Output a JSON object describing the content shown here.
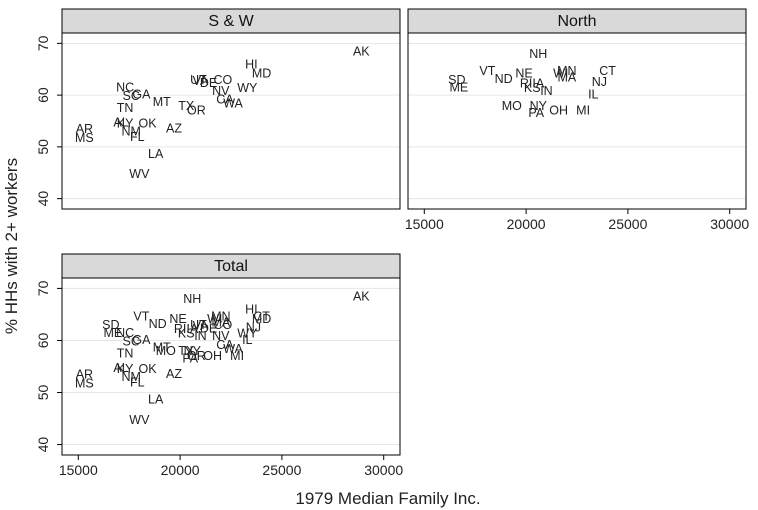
{
  "chart_data": {
    "type": "scatter",
    "xlabel": "1979 Median Family Inc.",
    "ylabel": "% HHs with 2+ workers",
    "xlim": [
      14200,
      30800
    ],
    "ylim": [
      38,
      72
    ],
    "xticks": [
      15000,
      20000,
      25000,
      30000
    ],
    "yticks": [
      40,
      50,
      60,
      70
    ],
    "panels": [
      {
        "title": "S & W",
        "points": [
          {
            "label": "AK",
            "x": 28900,
            "y": 68.3
          },
          {
            "label": "HI",
            "x": 23500,
            "y": 65.8
          },
          {
            "label": "MD",
            "x": 24000,
            "y": 64.0
          },
          {
            "label": "WY",
            "x": 23300,
            "y": 61.2
          },
          {
            "label": "UT",
            "x": 20900,
            "y": 62.8
          },
          {
            "label": "CO",
            "x": 22100,
            "y": 62.8
          },
          {
            "label": "VA",
            "x": 21000,
            "y": 62.6
          },
          {
            "label": "DE",
            "x": 21400,
            "y": 62.2
          },
          {
            "label": "NV",
            "x": 22000,
            "y": 60.7
          },
          {
            "label": "CA",
            "x": 22200,
            "y": 59.0
          },
          {
            "label": "WA",
            "x": 22600,
            "y": 58.2
          },
          {
            "label": "TX",
            "x": 20300,
            "y": 57.8
          },
          {
            "label": "OR",
            "x": 20800,
            "y": 56.9
          },
          {
            "label": "NC",
            "x": 17300,
            "y": 61.3
          },
          {
            "label": "SC",
            "x": 17600,
            "y": 59.7
          },
          {
            "label": "GA",
            "x": 18100,
            "y": 60.0
          },
          {
            "label": "MT",
            "x": 19100,
            "y": 58.5
          },
          {
            "label": "TN",
            "x": 17300,
            "y": 57.4
          },
          {
            "label": "KY",
            "x": 17300,
            "y": 54.4
          },
          {
            "label": "OK",
            "x": 18400,
            "y": 54.4
          },
          {
            "label": "AZ",
            "x": 19700,
            "y": 53.4
          },
          {
            "label": "AR",
            "x": 15300,
            "y": 53.3
          },
          {
            "label": "MS",
            "x": 15300,
            "y": 51.6
          },
          {
            "label": "NM",
            "x": 17600,
            "y": 52.8
          },
          {
            "label": "AL",
            "x": 17100,
            "y": 54.6
          },
          {
            "label": "FL",
            "x": 17900,
            "y": 51.8
          },
          {
            "label": "LA",
            "x": 18800,
            "y": 48.5
          },
          {
            "label": "WV",
            "x": 18000,
            "y": 44.6
          }
        ]
      },
      {
        "title": "North",
        "points": [
          {
            "label": "NH",
            "x": 20600,
            "y": 67.8
          },
          {
            "label": "VT",
            "x": 18100,
            "y": 64.5
          },
          {
            "label": "CT",
            "x": 24000,
            "y": 64.5
          },
          {
            "label": "MN",
            "x": 22000,
            "y": 64.5
          },
          {
            "label": "WI",
            "x": 21700,
            "y": 64.0
          },
          {
            "label": "NE",
            "x": 19900,
            "y": 64.0
          },
          {
            "label": "MA",
            "x": 22000,
            "y": 63.3
          },
          {
            "label": "NJ",
            "x": 23600,
            "y": 62.4
          },
          {
            "label": "ND",
            "x": 18900,
            "y": 63.0
          },
          {
            "label": "SD",
            "x": 16600,
            "y": 62.8
          },
          {
            "label": "ME",
            "x": 16700,
            "y": 61.3
          },
          {
            "label": "RI",
            "x": 20000,
            "y": 62.1
          },
          {
            "label": "IA",
            "x": 20600,
            "y": 62.1
          },
          {
            "label": "KS",
            "x": 20300,
            "y": 61.2
          },
          {
            "label": "IN",
            "x": 21000,
            "y": 60.7
          },
          {
            "label": "IL",
            "x": 23300,
            "y": 60.0
          },
          {
            "label": "MO",
            "x": 19300,
            "y": 57.8
          },
          {
            "label": "NY",
            "x": 20600,
            "y": 57.8
          },
          {
            "label": "PA",
            "x": 20500,
            "y": 56.4
          },
          {
            "label": "OH",
            "x": 21600,
            "y": 56.9
          },
          {
            "label": "MI",
            "x": 22800,
            "y": 56.9
          }
        ]
      },
      {
        "title": "Total",
        "points": [
          {
            "label": "AK",
            "x": 28900,
            "y": 68.3
          },
          {
            "label": "NH",
            "x": 20600,
            "y": 67.8
          },
          {
            "label": "HI",
            "x": 23500,
            "y": 65.8
          },
          {
            "label": "CT",
            "x": 24000,
            "y": 64.5
          },
          {
            "label": "MD",
            "x": 24000,
            "y": 64.0
          },
          {
            "label": "VT",
            "x": 18100,
            "y": 64.5
          },
          {
            "label": "MN",
            "x": 22000,
            "y": 64.5
          },
          {
            "label": "WI",
            "x": 21700,
            "y": 64.0
          },
          {
            "label": "NE",
            "x": 19900,
            "y": 64.0
          },
          {
            "label": "MA",
            "x": 22000,
            "y": 63.3
          },
          {
            "label": "UT",
            "x": 20900,
            "y": 62.8
          },
          {
            "label": "CO",
            "x": 22100,
            "y": 62.8
          },
          {
            "label": "VA",
            "x": 21000,
            "y": 62.6
          },
          {
            "label": "DE",
            "x": 21400,
            "y": 62.2
          },
          {
            "label": "NJ",
            "x": 23600,
            "y": 62.4
          },
          {
            "label": "ND",
            "x": 18900,
            "y": 63.0
          },
          {
            "label": "SD",
            "x": 16600,
            "y": 62.8
          },
          {
            "label": "ME",
            "x": 16700,
            "y": 61.3
          },
          {
            "label": "RI",
            "x": 20000,
            "y": 62.1
          },
          {
            "label": "IA",
            "x": 20600,
            "y": 62.1
          },
          {
            "label": "KS",
            "x": 20300,
            "y": 61.2
          },
          {
            "label": "IN",
            "x": 21000,
            "y": 60.7
          },
          {
            "label": "NV",
            "x": 22000,
            "y": 60.7
          },
          {
            "label": "WY",
            "x": 23300,
            "y": 61.2
          },
          {
            "label": "IL",
            "x": 23300,
            "y": 60.0
          },
          {
            "label": "NC",
            "x": 17300,
            "y": 61.3
          },
          {
            "label": "SC",
            "x": 17600,
            "y": 59.7
          },
          {
            "label": "GA",
            "x": 18100,
            "y": 60.0
          },
          {
            "label": "MT",
            "x": 19100,
            "y": 58.5
          },
          {
            "label": "MO",
            "x": 19300,
            "y": 57.8
          },
          {
            "label": "NY",
            "x": 20600,
            "y": 57.8
          },
          {
            "label": "CA",
            "x": 22200,
            "y": 59.0
          },
          {
            "label": "WA",
            "x": 22600,
            "y": 58.2
          },
          {
            "label": "TX",
            "x": 20300,
            "y": 57.8
          },
          {
            "label": "OR",
            "x": 20800,
            "y": 56.9
          },
          {
            "label": "PA",
            "x": 20500,
            "y": 56.4
          },
          {
            "label": "OH",
            "x": 21600,
            "y": 56.9
          },
          {
            "label": "MI",
            "x": 22800,
            "y": 56.9
          },
          {
            "label": "TN",
            "x": 17300,
            "y": 57.4
          },
          {
            "label": "KY",
            "x": 17300,
            "y": 54.4
          },
          {
            "label": "OK",
            "x": 18400,
            "y": 54.4
          },
          {
            "label": "AL",
            "x": 17100,
            "y": 54.6
          },
          {
            "label": "AZ",
            "x": 19700,
            "y": 53.4
          },
          {
            "label": "AR",
            "x": 15300,
            "y": 53.3
          },
          {
            "label": "MS",
            "x": 15300,
            "y": 51.6
          },
          {
            "label": "NM",
            "x": 17600,
            "y": 52.8
          },
          {
            "label": "FL",
            "x": 17900,
            "y": 51.8
          },
          {
            "label": "LA",
            "x": 18800,
            "y": 48.5
          },
          {
            "label": "WV",
            "x": 18000,
            "y": 44.6
          }
        ]
      }
    ]
  },
  "colors": {
    "strip_bg": "#d9d9d9",
    "frame": "#000000",
    "grid": "#e6e6e6",
    "text": "#222222"
  }
}
